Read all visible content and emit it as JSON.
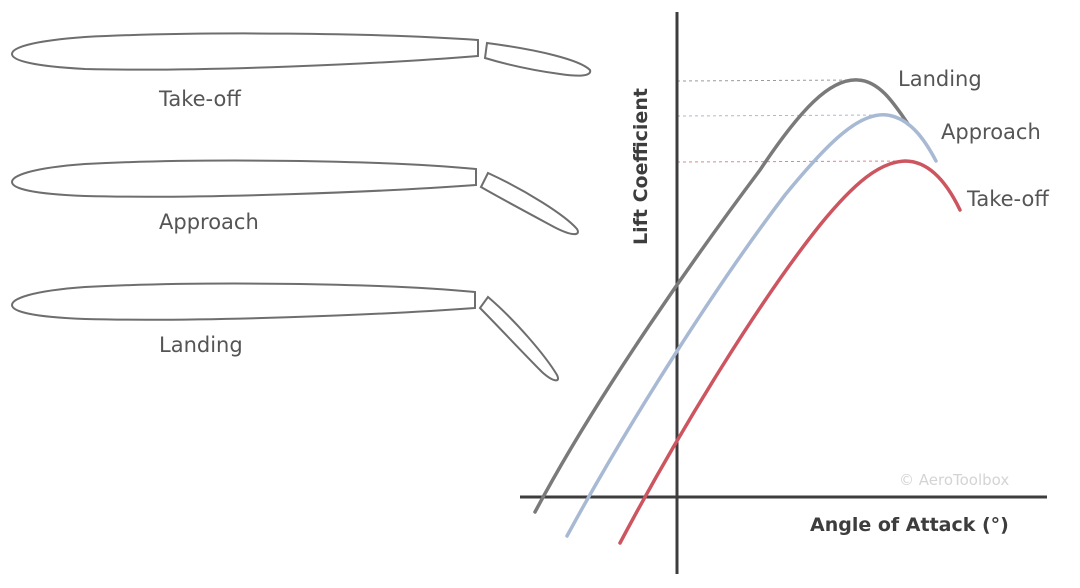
{
  "airfoils": [
    {
      "label": "Take-off",
      "flap": "small-deflection"
    },
    {
      "label": "Approach",
      "flap": "medium-deflection"
    },
    {
      "label": "Landing",
      "flap": "large-deflection"
    }
  ],
  "chart": {
    "y_axis_title": "Lift Coefficient",
    "x_axis_title": "Angle of Attack (°)",
    "watermark": "© AeroToolbox",
    "curves": [
      {
        "label": "Landing",
        "color": "#7a7a7a"
      },
      {
        "label": "Approach",
        "color": "#a8b9d4"
      },
      {
        "label": "Take-off",
        "color": "#cc5560"
      }
    ],
    "axis_color": "#3d3d3d"
  }
}
